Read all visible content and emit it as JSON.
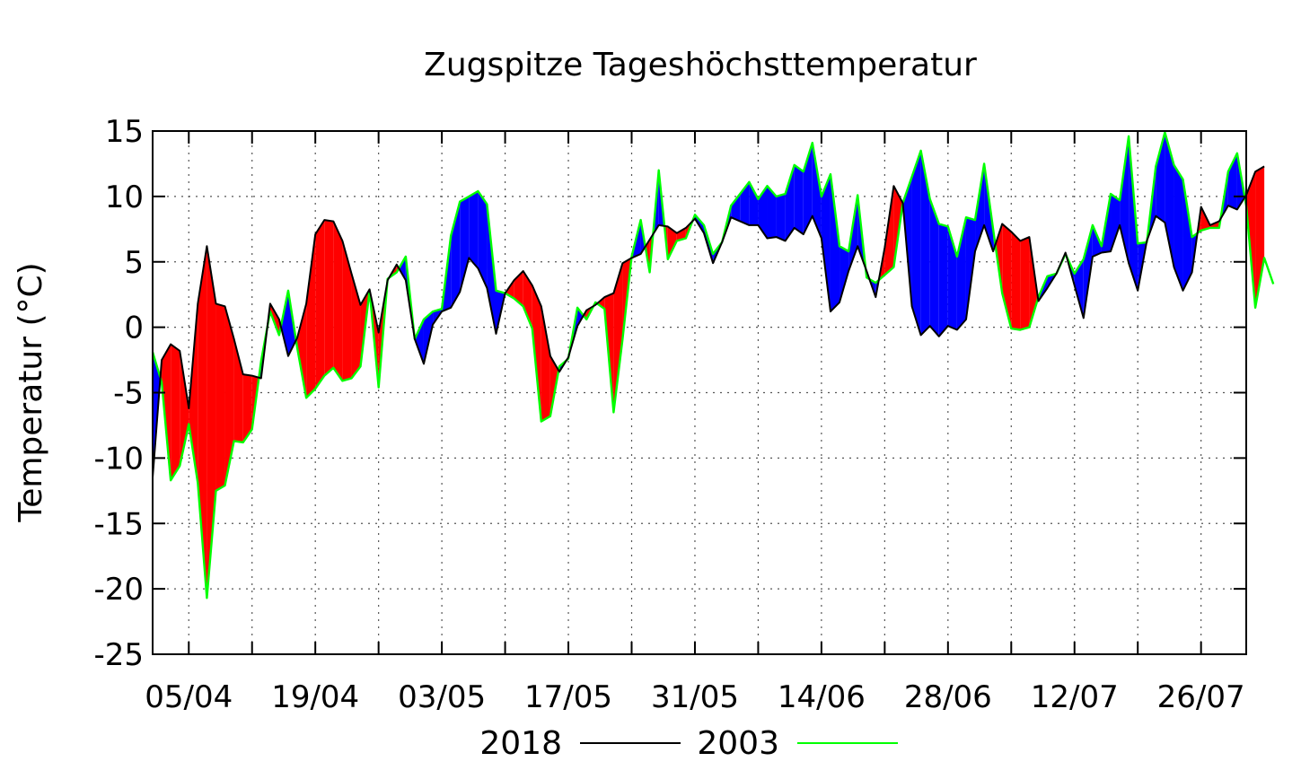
{
  "chart_data": {
    "type": "line",
    "title": "Zugspitze Tageshöchsttemperatur",
    "xlabel": "",
    "ylabel": "Temperatur (°C)",
    "ylim": [
      -25,
      15
    ],
    "yticks": [
      -25,
      -20,
      -15,
      -10,
      -5,
      0,
      5,
      10,
      15
    ],
    "xlim": [
      "2018-04-01",
      "2018-07-31"
    ],
    "xticks": [
      {
        "date": "2018-04-05",
        "label": "05/04"
      },
      {
        "date": "2018-04-19",
        "label": "19/04"
      },
      {
        "date": "2018-05-03",
        "label": "03/05"
      },
      {
        "date": "2018-05-17",
        "label": "17/05"
      },
      {
        "date": "2018-05-31",
        "label": "31/05"
      },
      {
        "date": "2018-06-14",
        "label": "14/06"
      },
      {
        "date": "2018-06-28",
        "label": "28/06"
      },
      {
        "date": "2018-07-12",
        "label": "12/07"
      },
      {
        "date": "2018-07-26",
        "label": "26/07"
      }
    ],
    "grid": true,
    "legend_position": "bottom-center",
    "fill_colors": {
      "2018_warmer": "#ff0000",
      "2003_warmer": "#0000ff"
    },
    "series": [
      {
        "name": "2018",
        "color": "#000000",
        "x_start": "2018-04-01",
        "values": [
          -11.5,
          -2.5,
          -1.3,
          -1.8,
          -6.2,
          1.8,
          6.2,
          1.8,
          1.6,
          -0.9,
          -3.6,
          -3.7,
          -3.9,
          1.8,
          0.6,
          -2.2,
          -0.8,
          1.8,
          7.1,
          8.2,
          8.1,
          6.6,
          4.1,
          1.7,
          2.9,
          -0.4,
          3.6,
          4.8,
          3.6,
          -0.9,
          -2.8,
          0.2,
          1.2,
          1.5,
          2.7,
          5.3,
          4.5,
          3.0,
          -0.5,
          2.6,
          3.6,
          4.3,
          3.2,
          1.6,
          -2.2,
          -3.4,
          -2.3,
          0.1,
          1.3,
          1.7,
          2.3,
          2.6,
          4.9,
          5.3,
          5.6,
          6.7,
          7.8,
          7.7,
          7.2,
          7.6,
          8.3,
          7.2,
          4.9,
          6.5,
          8.4,
          8.1,
          7.8,
          7.8,
          6.8,
          6.9,
          6.6,
          7.6,
          7.1,
          8.5,
          6.8,
          1.2,
          1.9,
          4.3,
          6.2,
          4.3,
          2.3,
          6.1,
          10.8,
          9.5,
          1.6,
          -0.6,
          0.1,
          -0.7,
          0.1,
          -0.2,
          0.6,
          5.8,
          7.8,
          5.8,
          7.9,
          7.3,
          6.6,
          6.9,
          2.0,
          3.0,
          4.1,
          5.7,
          3.2,
          0.7,
          5.4,
          5.7,
          5.8,
          7.8,
          4.9,
          2.8,
          6.6,
          8.5,
          8.0,
          4.6,
          2.8,
          4.2,
          9.2,
          7.8,
          8.1,
          9.3,
          9.0,
          10.1,
          11.9,
          12.3
        ]
      },
      {
        "name": "2003",
        "color": "#00ff00",
        "x_start": "2018-04-01",
        "values": [
          -1.9,
          -4.2,
          -11.7,
          -10.6,
          -7.4,
          -11.9,
          -20.7,
          -12.5,
          -12.1,
          -8.7,
          -8.8,
          -7.8,
          -2.6,
          1.2,
          -0.6,
          2.8,
          -1.6,
          -5.4,
          -4.7,
          -3.7,
          -3.1,
          -4.1,
          -3.9,
          -3.0,
          2.8,
          -4.6,
          3.7,
          4.2,
          5.4,
          -0.9,
          0.6,
          1.2,
          1.4,
          7.0,
          9.6,
          10.0,
          10.4,
          9.4,
          2.8,
          2.6,
          2.2,
          1.6,
          -0.1,
          -7.2,
          -6.8,
          -3.0,
          -2.4,
          1.5,
          0.6,
          1.9,
          1.4,
          -6.5,
          -0.9,
          5.4,
          8.2,
          4.2,
          12.0,
          5.2,
          6.6,
          6.8,
          8.6,
          7.8,
          5.6,
          6.5,
          9.3,
          10.2,
          11.1,
          9.8,
          10.8,
          10.0,
          10.2,
          12.4,
          11.9,
          14.1,
          10.0,
          11.7,
          6.2,
          5.8,
          10.1,
          3.8,
          3.4,
          4.0,
          4.6,
          9.5,
          11.5,
          13.5,
          9.8,
          7.9,
          7.7,
          5.4,
          8.4,
          8.2,
          12.5,
          7.5,
          2.6,
          -0.1,
          -0.2,
          0.0,
          2.3,
          3.9,
          4.1,
          5.6,
          4.1,
          5.2,
          7.8,
          6.2,
          10.2,
          9.7,
          14.6,
          6.4,
          6.5,
          12.3,
          14.9,
          12.4,
          11.3,
          6.9,
          7.4,
          7.6,
          7.6,
          11.9,
          13.3,
          9.3,
          1.5,
          5.3,
          3.3
        ]
      }
    ]
  }
}
